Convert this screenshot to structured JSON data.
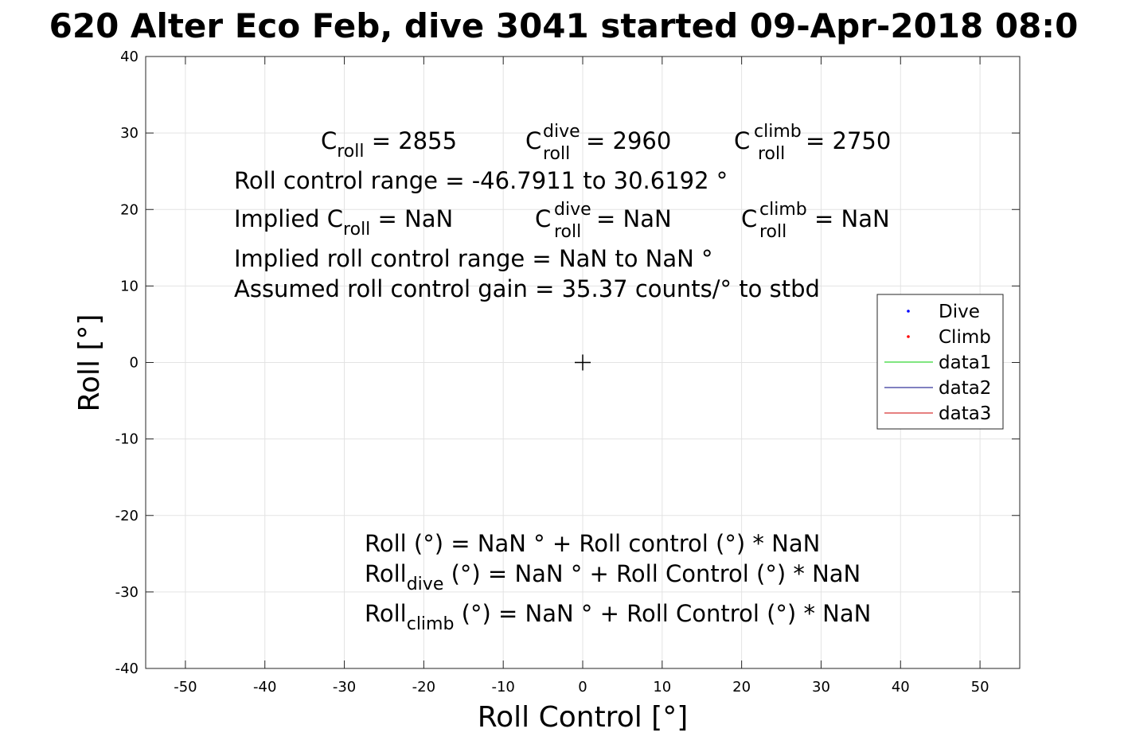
{
  "chart_data": {
    "type": "scatter",
    "title": "620 Alter Eco Feb, dive 3041 started 09-Apr-2018 08:0",
    "xlabel": "Roll Control [°]",
    "ylabel": "Roll [°]",
    "xlim": [
      -55,
      55
    ],
    "ylim": [
      -40,
      40
    ],
    "xticks": [
      -50,
      -40,
      -30,
      -20,
      -10,
      0,
      10,
      20,
      30,
      40,
      50
    ],
    "yticks": [
      -40,
      -30,
      -20,
      -10,
      0,
      10,
      20,
      30,
      40
    ],
    "grid": true,
    "legend_position": "right",
    "marker": {
      "x": 0,
      "y": 0,
      "symbol": "+"
    },
    "series": [
      {
        "name": "Dive",
        "kind": "points",
        "color": "#0000ff",
        "points": []
      },
      {
        "name": "Climb",
        "kind": "points",
        "color": "#ff0000",
        "points": []
      },
      {
        "name": "data1",
        "kind": "line",
        "color": "#00cc00",
        "points": []
      },
      {
        "name": "data2",
        "kind": "line",
        "color": "#000080",
        "points": []
      },
      {
        "name": "data3",
        "kind": "line",
        "color": "#cc0000",
        "points": []
      }
    ],
    "annotations": {
      "c_roll": {
        "main": "C",
        "sub": "roll",
        "value": " = 2855"
      },
      "c_roll_dive": {
        "main": "C",
        "sup": "dive",
        "sub": "roll",
        "value": " = 2960"
      },
      "c_roll_climb": {
        "main": "C",
        "sup": "climb",
        "sub": "roll",
        "value": " = 2750"
      },
      "range": "Roll control range = -46.7911 to 30.6192 °",
      "implied_prefix": "Implied C",
      "implied_sub": "roll",
      "implied_value": " =  NaN",
      "implied_dive": {
        "main": "C",
        "sup": "dive",
        "sub": "roll",
        "value": " =  NaN"
      },
      "implied_climb": {
        "main": "C",
        "sup": "climb",
        "sub": "roll",
        "value": " =  NaN"
      },
      "implied_range": "Implied roll control range = NaN to NaN °",
      "gain": "Assumed roll control gain = 35.37 counts/° to stbd",
      "fit": "Roll (°) = NaN ° + Roll control (°) * NaN",
      "fit_dive": {
        "main": "Roll",
        "sub": "dive",
        "rest": " (°) = NaN ° + Roll Control (°) * NaN"
      },
      "fit_climb": {
        "main": "Roll",
        "sub": "climb",
        "rest": " (°) = NaN ° + Roll Control (°) * NaN"
      }
    }
  }
}
